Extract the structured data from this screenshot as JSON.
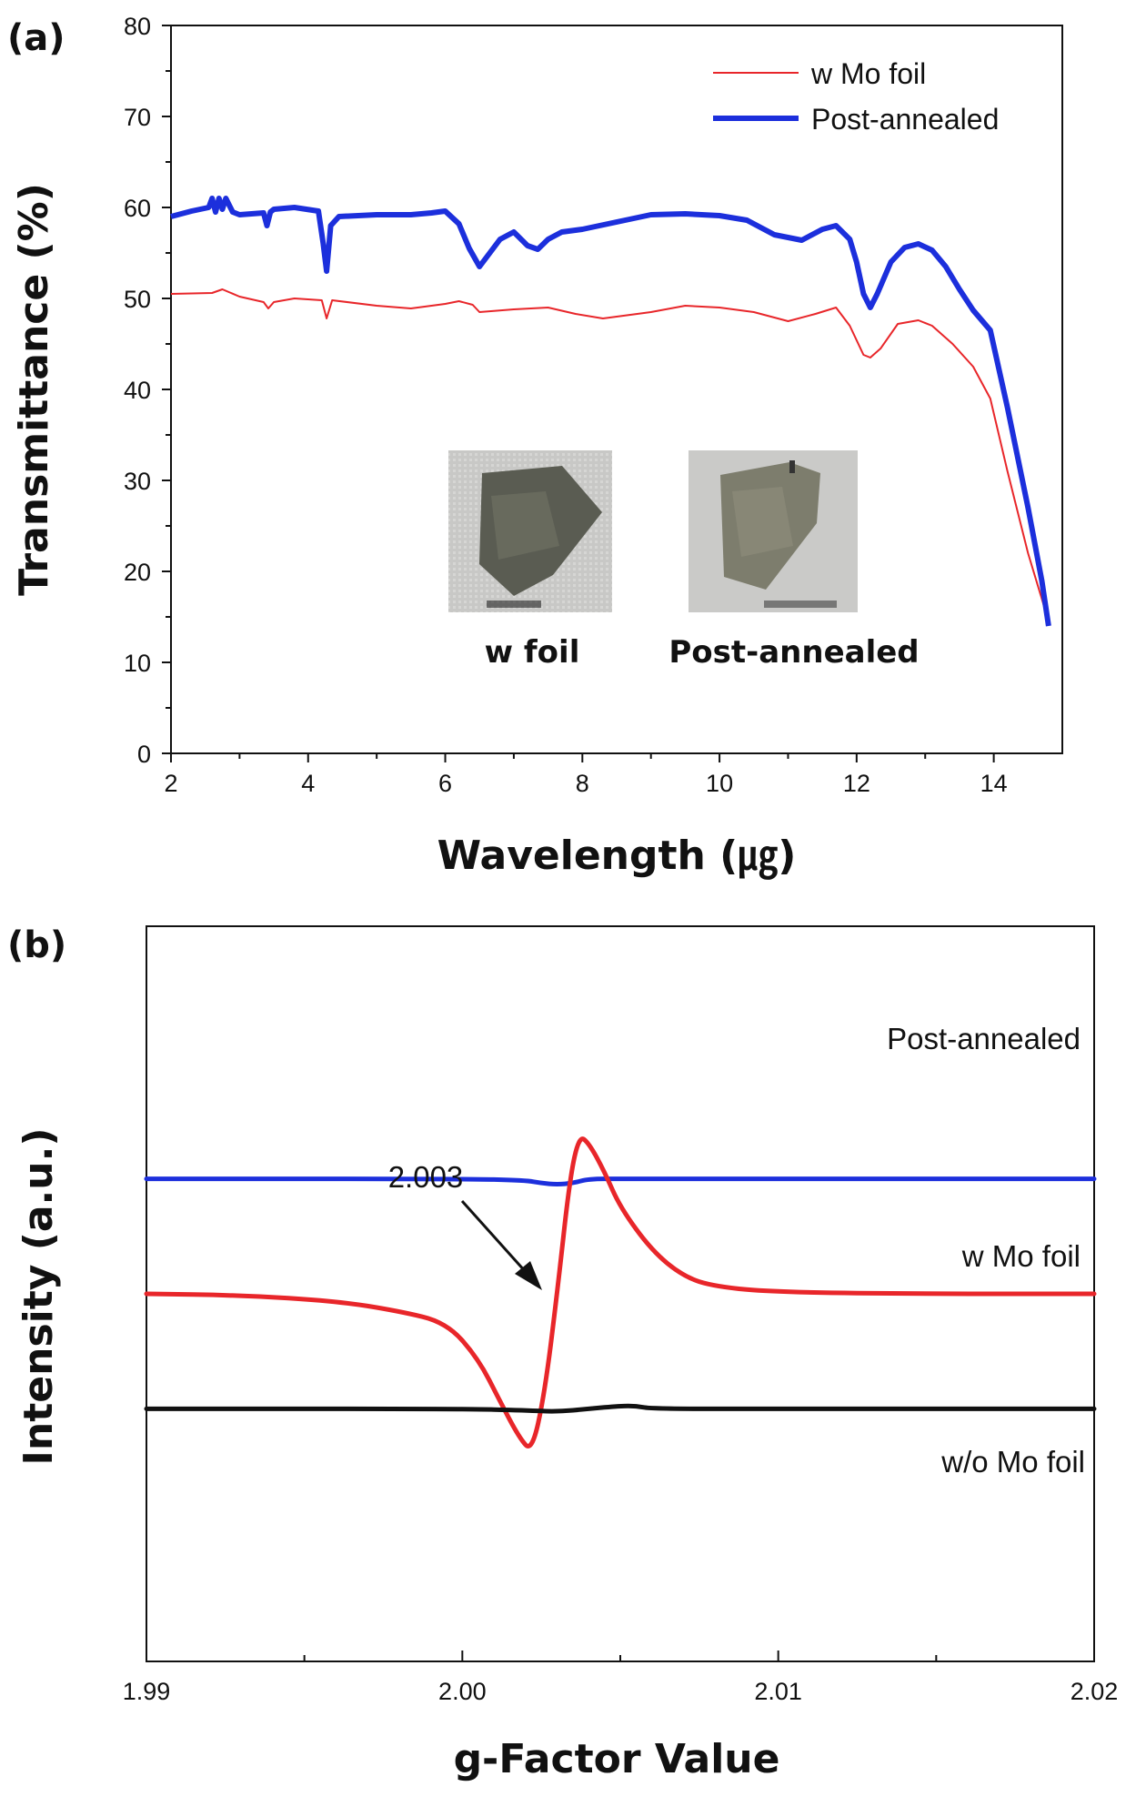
{
  "chart_data": [
    {
      "panel": "(a)",
      "type": "line",
      "xlabel": "Wavelength (㎍)",
      "ylabel": "Transmittance (%)",
      "xlim": [
        2,
        15
      ],
      "ylim": [
        0,
        80
      ],
      "xticks": [
        "2",
        "4",
        "6",
        "8",
        "10",
        "12",
        "14"
      ],
      "yticks": [
        "0",
        "10",
        "20",
        "30",
        "40",
        "50",
        "60",
        "70",
        "80"
      ],
      "legend_position": "top-right",
      "series": [
        {
          "name": "w Mo foil",
          "color": "#e8262a",
          "x": [
            2.0,
            2.6,
            2.75,
            3.0,
            3.35,
            3.42,
            3.5,
            3.8,
            4.2,
            4.27,
            4.35,
            5.0,
            5.5,
            6.0,
            6.2,
            6.4,
            6.5,
            7.0,
            7.5,
            7.9,
            8.3,
            9.0,
            9.5,
            10.0,
            10.5,
            11.0,
            11.4,
            11.7,
            11.9,
            12.1,
            12.2,
            12.35,
            12.6,
            12.9,
            13.1,
            13.4,
            13.7,
            13.95,
            14.2,
            14.5,
            14.7,
            14.8
          ],
          "y": [
            50.5,
            50.6,
            51.0,
            50.2,
            49.6,
            48.9,
            49.6,
            50.0,
            49.8,
            47.8,
            49.8,
            49.2,
            48.9,
            49.4,
            49.7,
            49.3,
            48.5,
            48.8,
            49.0,
            48.3,
            47.8,
            48.5,
            49.2,
            49.0,
            48.5,
            47.5,
            48.3,
            49.0,
            47.0,
            43.8,
            43.5,
            44.5,
            47.2,
            47.6,
            47.0,
            45.0,
            42.5,
            39.0,
            31.0,
            22.0,
            17.0,
            14.5
          ]
        },
        {
          "name": "Post-annealed",
          "color": "#1c2fdc",
          "x": [
            2.0,
            2.3,
            2.55,
            2.6,
            2.65,
            2.7,
            2.75,
            2.8,
            2.9,
            3.0,
            3.35,
            3.4,
            3.45,
            3.5,
            3.8,
            4.15,
            4.22,
            4.27,
            4.33,
            4.45,
            5.0,
            5.5,
            5.8,
            6.0,
            6.2,
            6.35,
            6.5,
            6.65,
            6.8,
            7.0,
            7.2,
            7.35,
            7.5,
            7.7,
            8.0,
            8.5,
            9.0,
            9.5,
            10.0,
            10.4,
            10.8,
            11.2,
            11.5,
            11.7,
            11.9,
            12.0,
            12.1,
            12.2,
            12.3,
            12.5,
            12.7,
            12.9,
            13.1,
            13.3,
            13.5,
            13.7,
            13.95,
            14.2,
            14.5,
            14.7,
            14.8
          ],
          "y": [
            59.0,
            59.6,
            60.0,
            61.0,
            59.5,
            61.0,
            59.8,
            61.0,
            59.5,
            59.2,
            59.4,
            58.0,
            59.5,
            59.8,
            60.0,
            59.6,
            56.0,
            53.0,
            58.0,
            59.0,
            59.2,
            59.2,
            59.4,
            59.6,
            58.2,
            55.5,
            53.5,
            55.0,
            56.5,
            57.3,
            55.8,
            55.4,
            56.5,
            57.3,
            57.6,
            58.4,
            59.2,
            59.3,
            59.1,
            58.6,
            57.0,
            56.4,
            57.6,
            58.0,
            56.5,
            54.0,
            50.5,
            49.0,
            50.5,
            54.0,
            55.6,
            56.0,
            55.3,
            53.5,
            51.0,
            48.7,
            46.5,
            38.0,
            27.0,
            19.0,
            14.0
          ]
        }
      ],
      "inset_labels": [
        "w foil",
        "Post-annealed"
      ]
    },
    {
      "panel": "(b)",
      "type": "line",
      "xlabel": "g-Factor Value",
      "ylabel": "Intensity (a.u.)",
      "xlim": [
        1.99,
        2.02
      ],
      "xticks": [
        "1.99",
        "2.00",
        "2.01",
        "2.02"
      ],
      "yticks": [],
      "annotation": "2.003",
      "series": [
        {
          "name": "Post-annealed",
          "color": "#1c2fdc",
          "x": [
            1.99,
            2.0,
            2.002,
            2.0025,
            2.003,
            2.0035,
            2.004,
            2.005,
            2.01,
            2.02
          ],
          "y": [
            0.8,
            0.8,
            0.79,
            0.77,
            0.76,
            0.77,
            0.8,
            0.8,
            0.8,
            0.8
          ]
        },
        {
          "name": "w Mo foil",
          "color": "#e8262a",
          "x": [
            1.99,
            1.993,
            1.996,
            1.998,
            1.9995,
            2.0005,
            2.0012,
            2.0018,
            2.0022,
            2.0026,
            2.003,
            2.0034,
            2.0037,
            2.004,
            2.0045,
            2.005,
            2.006,
            2.007,
            2.008,
            2.01,
            2.015,
            2.02
          ],
          "y": [
            0.0,
            -0.01,
            -0.05,
            -0.12,
            -0.2,
            -0.45,
            -0.75,
            -1.0,
            -1.1,
            -0.7,
            0.0,
            0.8,
            1.1,
            1.05,
            0.85,
            0.6,
            0.3,
            0.12,
            0.05,
            0.01,
            0.0,
            0.0
          ]
        },
        {
          "name": "w/o Mo foil",
          "color": "#111111",
          "x": [
            1.99,
            2.0,
            2.002,
            2.003,
            2.004,
            2.005,
            2.0055,
            2.006,
            2.01,
            2.02
          ],
          "y": [
            -0.8,
            -0.8,
            -0.81,
            -0.82,
            -0.8,
            -0.78,
            -0.78,
            -0.8,
            -0.8,
            -0.8
          ]
        }
      ]
    }
  ],
  "colors": {
    "red": "#e8262a",
    "blue": "#1c2fdc",
    "black": "#111111"
  }
}
